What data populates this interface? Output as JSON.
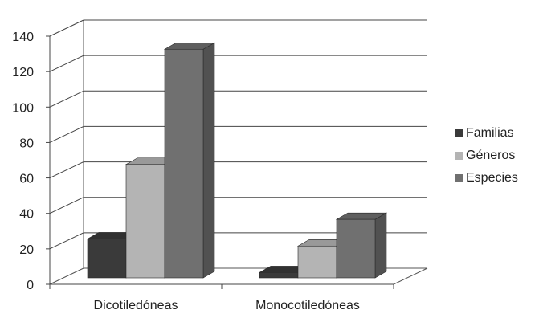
{
  "chart_data": {
    "type": "bar",
    "categories": [
      "Dicotiledóneas",
      "Monocotiledóneas"
    ],
    "series": [
      {
        "name": "Familias",
        "values": [
          22,
          3
        ],
        "color": "#3a3a3a"
      },
      {
        "name": "Géneros",
        "values": [
          64,
          18
        ],
        "color": "#b4b4b4"
      },
      {
        "name": "Especies",
        "values": [
          129,
          33
        ],
        "color": "#707070"
      }
    ],
    "yticks": [
      "0",
      "20",
      "40",
      "60",
      "80",
      "100",
      "120",
      "140"
    ],
    "ylim": [
      0,
      140
    ],
    "grid": true,
    "legend_position": "right",
    "three_d": true
  }
}
